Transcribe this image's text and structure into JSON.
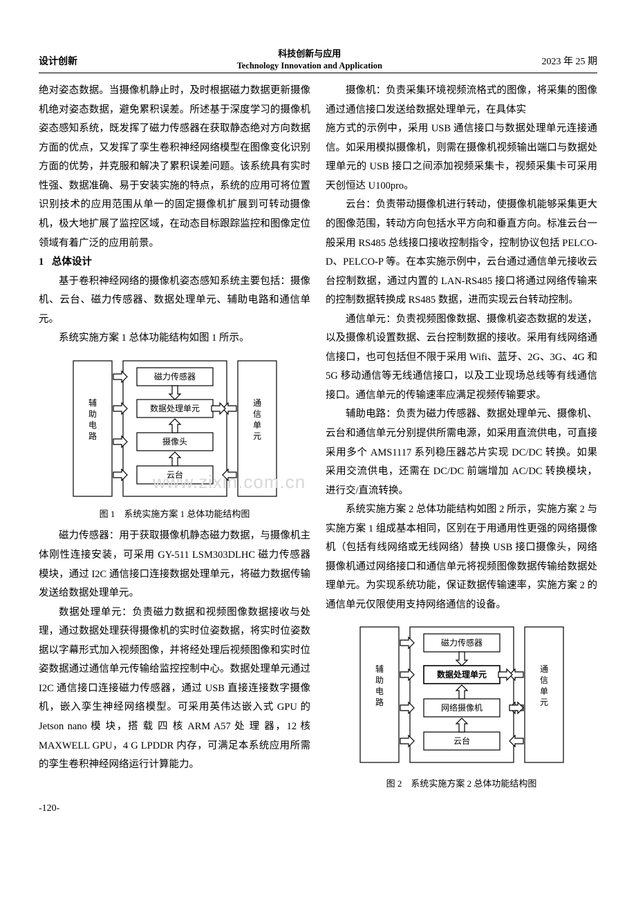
{
  "header": {
    "section": "设计创新",
    "journal_cn": "科技创新与应用",
    "journal_en": "Technology Innovation and Application",
    "issue": "2023 年 25 期"
  },
  "watermark": "www.zixin.com.cn",
  "col1": {
    "p1": "绝对姿态数据。当摄像机静止时，及时根据磁力数据更新摄像机绝对姿态数据，避免累积误差。所述基于深度学习的摄像机姿态感知系统，既发挥了磁力传感器在获取静态绝对方向数据方面的优点，又发挥了孪生卷积神经网络模型在图像变化识别方面的优势，并克服和解决了累积误差问题。该系统具有实时性强、数据准确、易于安装实施的特点，系统的应用可将位置识别技术的应用范围从单一的固定摄像机扩展到可转动摄像机，极大地扩展了监控区域，在动态目标跟踪监控和图像定位领域有着广泛的应用前景。",
    "h1_num": "1",
    "h1": "总体设计",
    "p2": "基于卷积神经网络的摄像机姿态感知系统主要包括：摄像机、云台、磁力传感器、数据处理单元、辅助电路和通信单元。",
    "p3": "系统实施方案 1 总体功能结构如图 1 所示。",
    "fig1_caption": "图 1　系统实施方案 1 总体功能结构图",
    "p4": "磁力传感器：用于获取摄像机静态磁力数据，与摄像机主体刚性连接安装，可采用 GY-511 LSM303DLHC 磁力传感器模块，通过 I2C 通信接口连接数据处理单元，将磁力数据传输发送给数据处理单元。",
    "p5": "数据处理单元：负责磁力数据和视频图像数据接收与处理，通过数据处理获得摄像机的实时位姿数据，将实时位姿数据以字幕形式加入视频图像，并将经处理后视频图像和实时位姿数据通过通信单元传输给监控控制中心。数据处理单元通过 I2C 通信接口连接磁力传感器，通过 USB 直接连接数字摄像机，嵌入孪生神经网络模型。可采用英伟达嵌入式 GPU 的 Jetson nano 模 块，搭 载 四 核 ARM A57 处 理 器，12 核 MAXWELL GPU，4 G LPDDR 内存，可满足本系统应用所需的孪生卷积神经网络运行计算能力。",
    "p6": "摄像机：负责采集环境视频流格式的图像，将采集的图像通过通信接口发送给数据处理单元，在具体实"
  },
  "col2": {
    "p1": "施方式的示例中，采用 USB 通信接口与数据处理单元连接通信。如采用模拟摄像机，则需在摄像机视频输出端口与数据处理单元的 USB 接口之间添加视频采集卡，视频采集卡可采用天创恒达 U100pro。",
    "p2": "云台：负责带动摄像机进行转动，使摄像机能够采集更大的图像范围，转动方向包括水平方向和垂直方向。标准云台一般采用 RS485 总线接口接收控制指令，控制协议包括 PELCO-D、PELCO-P 等。在本实施示例中，云台通过通信单元接收云台控制数据，通过内置的 LAN-RS485 接口将通过网络传输来的控制数据转换成 RS485 数据，进而实现云台转动控制。",
    "p3": "通信单元：负责视频图像数据、摄像机姿态数据的发送，以及摄像机设置数据、云台控制数据的接收。采用有线网络通信接口，也可包括但不限于采用 Wifi、蓝牙、2G、3G、4G 和 5G 移动通信等无线通信接口，以及工业现场总线等有线通信接口。通信单元的传输速率应满足视频传输要求。",
    "p4": "辅助电路：负责为磁力传感器、数据处理单元、摄像机、云台和通信单元分别提供所需电源，如采用直流供电，可直接采用多个 AMS1117 系列稳压器芯片实现 DC/DC 转换。如果采用交流供电，还需在 DC/DC 前端增加 AC/DC 转换模块，进行交/直流转换。",
    "p5": "系统实施方案 2 总体功能结构如图 2 所示，实施方案 2 与实施方案 1 组成基本相同，区别在于用通用性更强的网络摄像机（包括有线网络或无线网络）替换 USB 接口摄像头，网络摄像机通过网络接口和通信单元将视频图像数据传输给数据处理单元。为实现系统功能，保证数据传输速率，实施方案 2 的通信单元仅限使用支持网络通信的设备。",
    "fig2_caption": "图 2　系统实施方案 2 总体功能结构图"
  },
  "fig1": {
    "left_label": "辅\n助\n电\n路",
    "right_label": "通\n信\n单\n元",
    "box1": "磁力传感器",
    "box2": "数据处理单元",
    "box3": "摄像头",
    "box4": "云台",
    "stroke": "#000",
    "fill": "#fff",
    "font_size": 12
  },
  "fig2": {
    "left_label": "辅\n助\n电\n路",
    "right_label": "通\n信\n单\n元",
    "box1": "磁力传感器",
    "box2": "数据处理单元",
    "box3": "网络摄像机",
    "box4": "云台",
    "stroke": "#000",
    "fill": "#fff",
    "font_size": 12
  },
  "page_number": "-120-"
}
